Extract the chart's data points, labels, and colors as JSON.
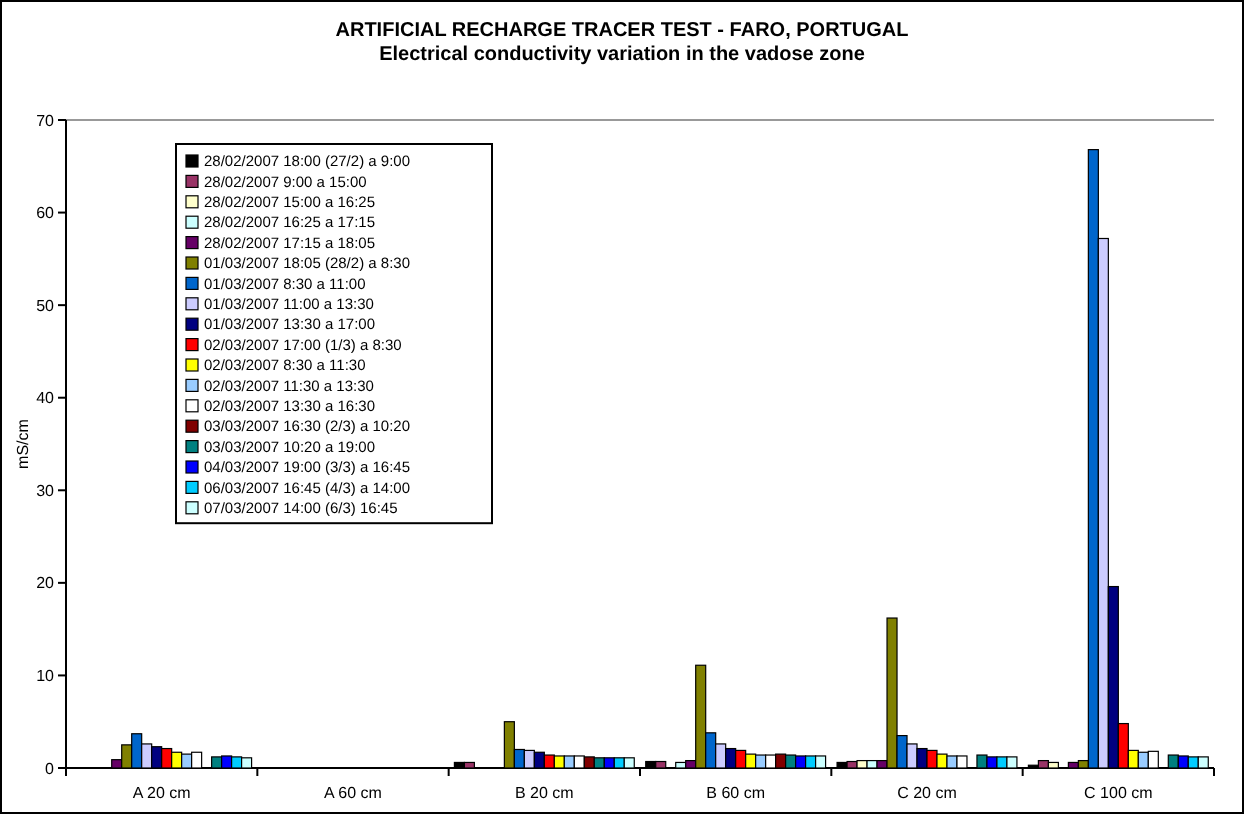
{
  "chart_data": {
    "type": "bar",
    "title": "ARTIFICIAL RECHARGE TRACER TEST - FARO, PORTUGAL",
    "subtitle": "Electrical conductivity variation in the vadose zone",
    "ylabel": "mS/cm",
    "categories": [
      "A 20 cm",
      "A 60 cm",
      "B 20 cm",
      "B 60 cm",
      "C 20 cm",
      "C 100 cm"
    ],
    "ylim": [
      0,
      70
    ],
    "yticks": [
      0,
      10,
      20,
      30,
      40,
      50,
      60,
      70
    ],
    "grid": false,
    "legend": "top left",
    "series": [
      {
        "name": "28/02/2007 18:00 (27/2) a 9:00",
        "color": "#000000",
        "values": [
          null,
          null,
          0.6,
          0.7,
          0.6,
          0.3
        ]
      },
      {
        "name": "28/02/2007 9:00 a 15:00",
        "color": "#993366",
        "values": [
          null,
          null,
          0.6,
          0.7,
          0.7,
          0.8
        ]
      },
      {
        "name": "28/02/2007 15:00 a 16:25",
        "color": "#ffffcc",
        "values": [
          null,
          null,
          null,
          null,
          0.8,
          0.6
        ]
      },
      {
        "name": "28/02/2007 16:25 a 17:15",
        "color": "#ccffff",
        "values": [
          null,
          null,
          null,
          0.6,
          0.8,
          null
        ]
      },
      {
        "name": "28/02/2007 17:15 a 18:05",
        "color": "#660066",
        "values": [
          0.9,
          null,
          null,
          0.8,
          0.8,
          0.6
        ]
      },
      {
        "name": "01/03/2007 18:05 (28/2) a 8:30",
        "color": "#808000",
        "values": [
          2.5,
          null,
          5.0,
          11.1,
          16.2,
          0.8
        ]
      },
      {
        "name": "01/03/2007 8:30 a 11:00",
        "color": "#0066cc",
        "values": [
          3.7,
          null,
          2.0,
          3.8,
          3.5,
          66.8
        ]
      },
      {
        "name": "01/03/2007 11:00 a 13:30",
        "color": "#ccccff",
        "values": [
          2.6,
          null,
          1.9,
          2.6,
          2.6,
          57.2
        ]
      },
      {
        "name": "01/03/2007 13:30 a 17:00",
        "color": "#000080",
        "values": [
          2.3,
          null,
          1.7,
          2.1,
          2.1,
          19.6
        ]
      },
      {
        "name": "02/03/2007 17:00 (1/3) a 8:30",
        "color": "#ff0000",
        "values": [
          2.1,
          null,
          1.4,
          1.9,
          1.9,
          4.8
        ]
      },
      {
        "name": "02/03/2007 8:30 a 11:30",
        "color": "#ffff00",
        "values": [
          1.7,
          null,
          1.3,
          1.5,
          1.5,
          1.9
        ]
      },
      {
        "name": "02/03/2007 11:30 a 13:30",
        "color": "#99ccff",
        "values": [
          1.5,
          null,
          1.3,
          1.4,
          1.3,
          1.7
        ]
      },
      {
        "name": "02/03/2007 13:30 a 16:30",
        "color": "#ffffff",
        "values": [
          1.7,
          null,
          1.3,
          1.4,
          1.3,
          1.8
        ]
      },
      {
        "name": "03/03/2007 16:30 (2/3) a 10:20",
        "color": "#800000",
        "values": [
          null,
          null,
          1.2,
          1.5,
          null,
          null
        ]
      },
      {
        "name": "03/03/2007 10:20 a 19:00",
        "color": "#008080",
        "values": [
          1.2,
          null,
          1.1,
          1.4,
          1.4,
          1.4
        ]
      },
      {
        "name": "04/03/2007 19:00 (3/3) a 16:45",
        "color": "#0000ff",
        "values": [
          1.3,
          null,
          1.1,
          1.3,
          1.2,
          1.3
        ]
      },
      {
        "name": "06/03/2007 16:45 (4/3) a 14:00",
        "color": "#00ccff",
        "values": [
          1.2,
          null,
          1.1,
          1.3,
          1.2,
          1.2
        ]
      },
      {
        "name": "07/03/2007 14:00 (6/3) 16:45",
        "color": "#ccffff",
        "values": [
          1.1,
          null,
          1.1,
          1.3,
          1.2,
          1.2
        ]
      }
    ]
  }
}
